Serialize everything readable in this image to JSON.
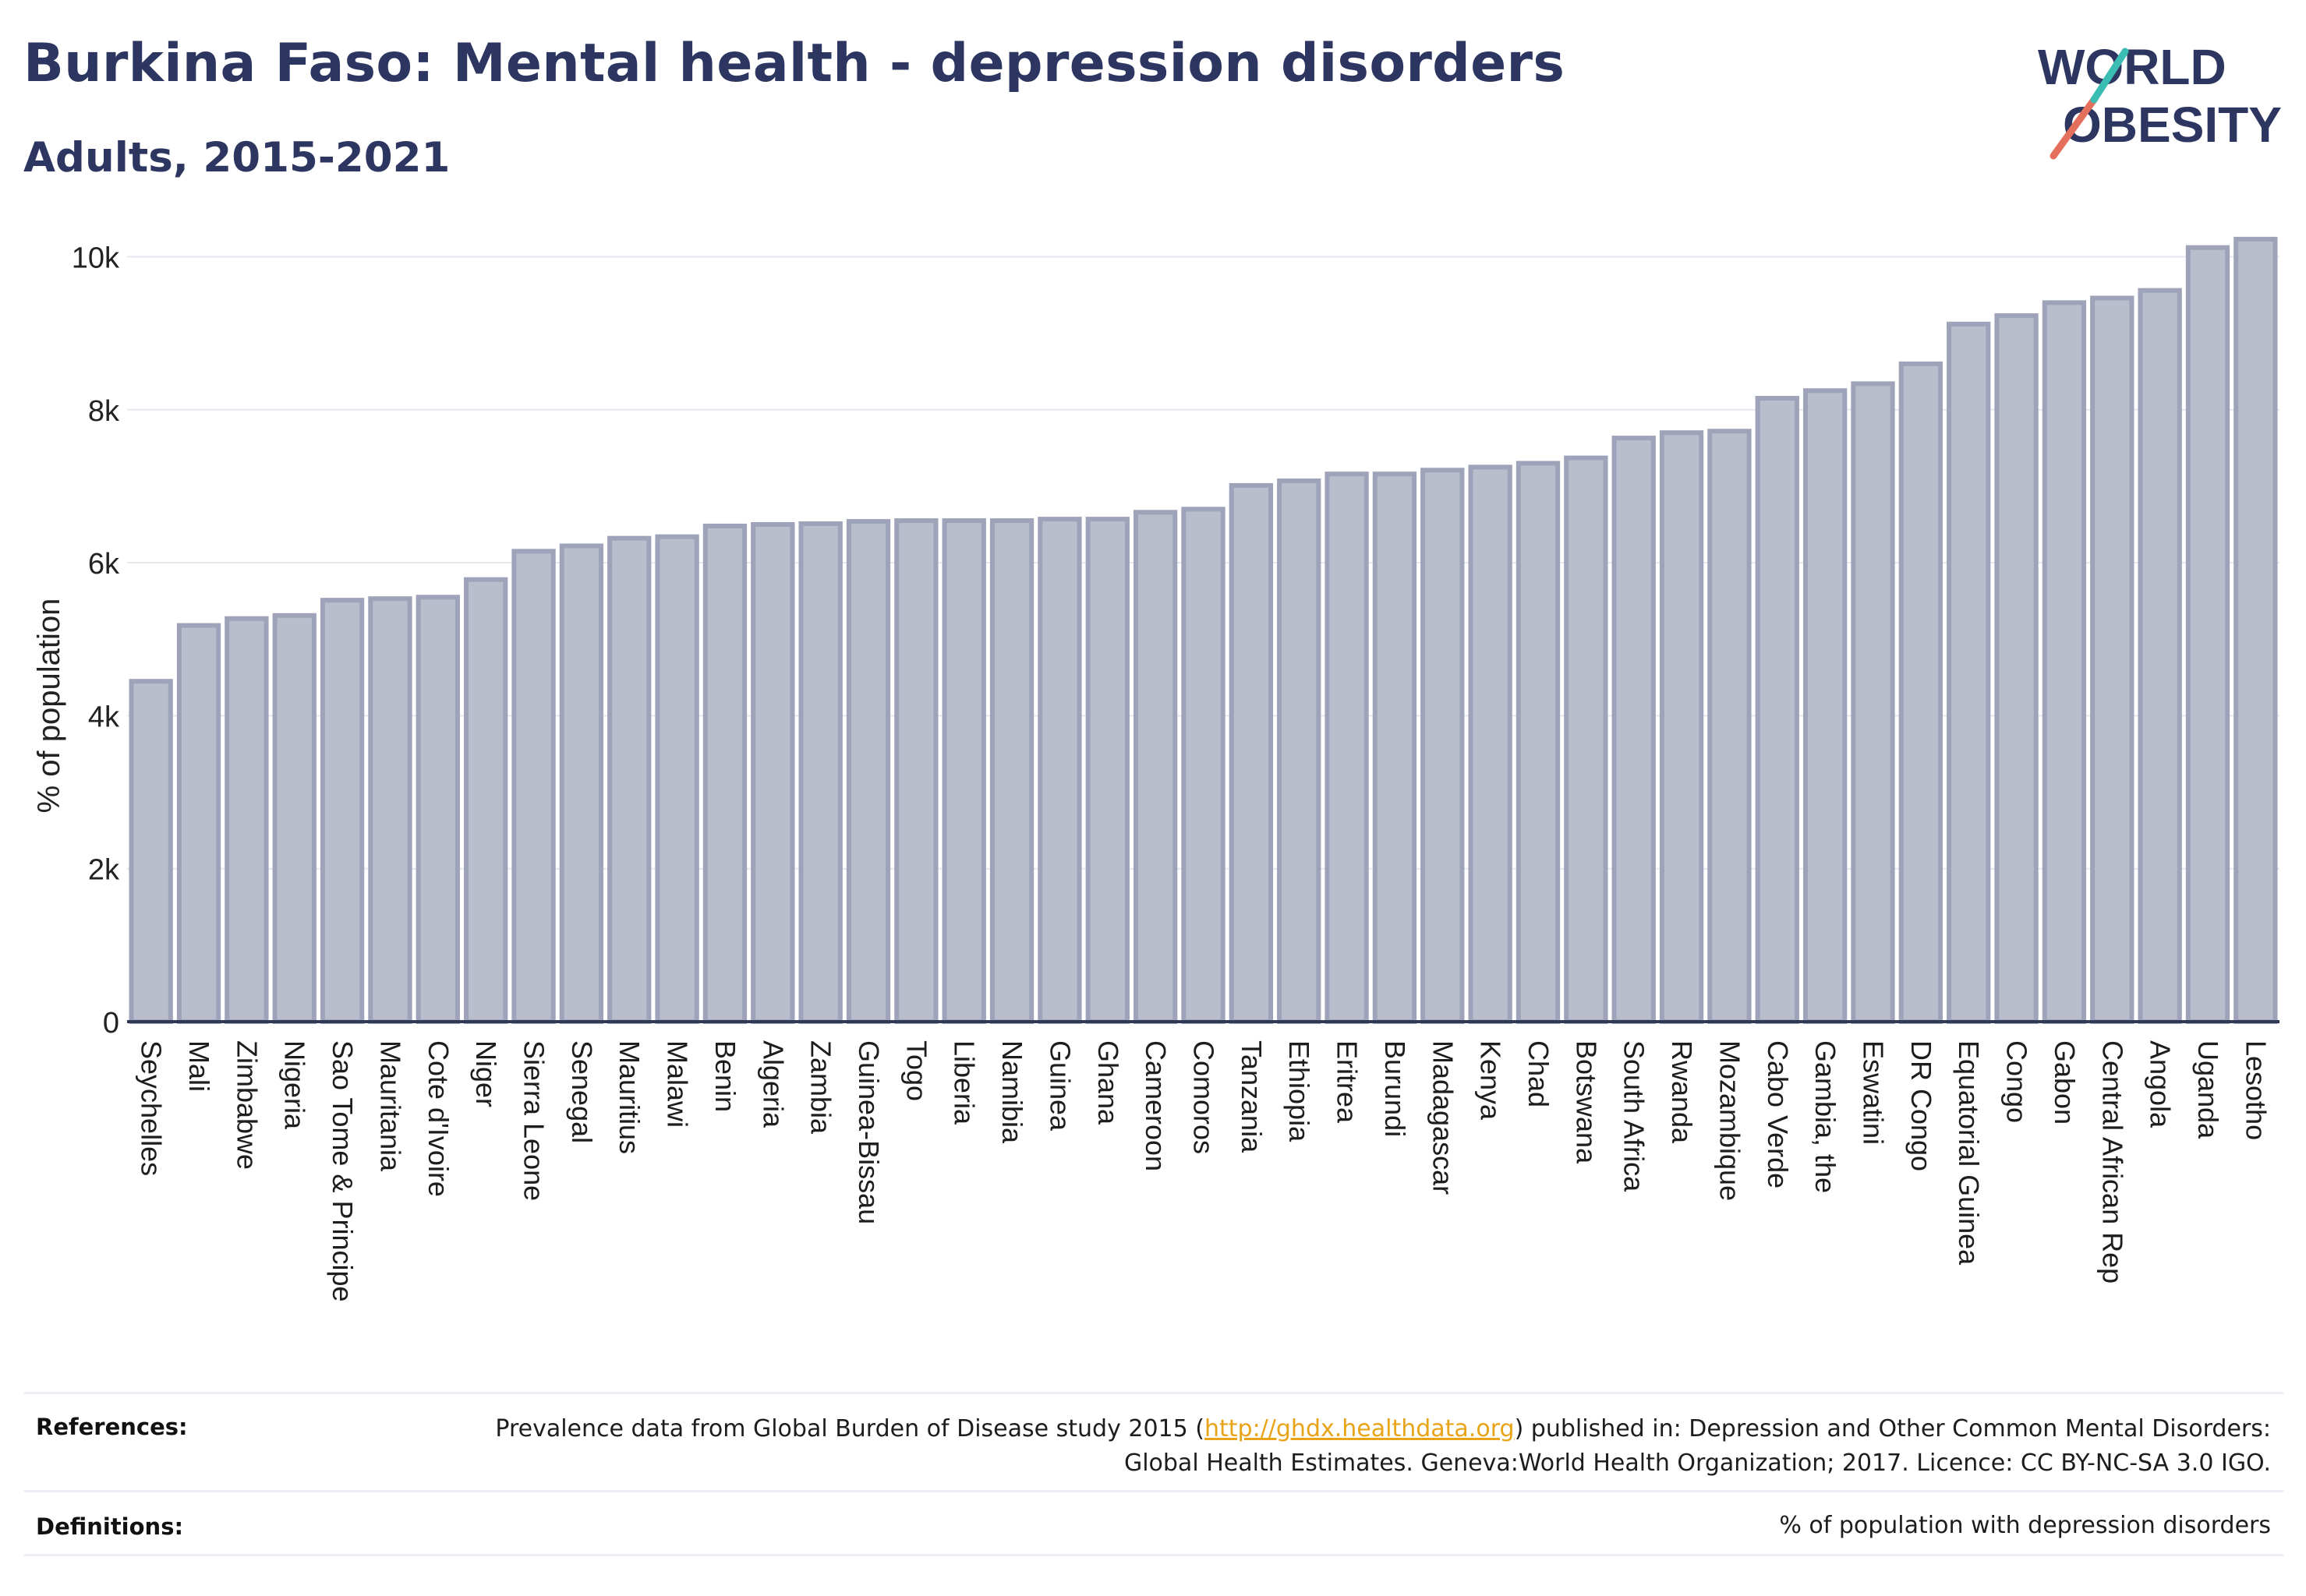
{
  "header": {
    "title": "Burkina Faso: Mental health - depression disorders",
    "subtitle": "Adults, 2015-2021"
  },
  "logo": {
    "line1": "WORLD",
    "line2": "OBESITY",
    "text_color": "#2d3660",
    "slash_colors": [
      "#e36f5c",
      "#3bbdb3"
    ]
  },
  "chart_data": {
    "type": "bar",
    "ylabel": "% of population",
    "xlabel": "",
    "ylim": [
      0,
      10300
    ],
    "yticks": [
      0,
      2000,
      4000,
      6000,
      8000,
      10000
    ],
    "ytick_labels": [
      "0",
      "2k",
      "4k",
      "6k",
      "8k",
      "10k"
    ],
    "grid": true,
    "bar_fill": "#b9bdcc",
    "bar_edge": "#9ea3b9",
    "categories": [
      "Seychelles",
      "Mali",
      "Zimbabwe",
      "Nigeria",
      "Sao Tome & Principe",
      "Mauritania",
      "Cote d'Ivoire",
      "Niger",
      "Sierra Leone",
      "Senegal",
      "Mauritius",
      "Malawi",
      "Benin",
      "Algeria",
      "Zambia",
      "Guinea-Bissau",
      "Togo",
      "Liberia",
      "Namibia",
      "Guinea",
      "Ghana",
      "Cameroon",
      "Comoros",
      "Tanzania",
      "Ethiopia",
      "Eritrea",
      "Burundi",
      "Madagascar",
      "Kenya",
      "Chad",
      "Botswana",
      "South Africa",
      "Rwanda",
      "Mozambique",
      "Cabo Verde",
      "Gambia, the",
      "Eswatini",
      "DR Congo",
      "Equatorial Guinea",
      "Congo",
      "Gabon",
      "Central African Rep",
      "Angola",
      "Uganda",
      "Lesotho"
    ],
    "values": [
      4450,
      5180,
      5270,
      5310,
      5510,
      5530,
      5550,
      5780,
      6150,
      6220,
      6320,
      6340,
      6480,
      6500,
      6510,
      6540,
      6550,
      6550,
      6550,
      6570,
      6570,
      6660,
      6700,
      7010,
      7070,
      7160,
      7160,
      7210,
      7250,
      7300,
      7370,
      7630,
      7700,
      7720,
      8150,
      8250,
      8340,
      8600,
      9120,
      9230,
      9400,
      9460,
      9560,
      10120,
      10230
    ]
  },
  "footer": {
    "references_label": "References:",
    "references_text_before": "Prevalence data from Global Burden of Disease study 2015 (",
    "references_link": "http://ghdx.healthdata.org",
    "references_text_after": ") published in: Depression and Other Common Mental Disorders: Global Health Estimates. Geneva:World Health Organization; 2017. Licence: CC BY-NC-SA 3.0 IGO.",
    "definitions_label": "Definitions:",
    "definitions_text": "% of population with depression disorders"
  }
}
